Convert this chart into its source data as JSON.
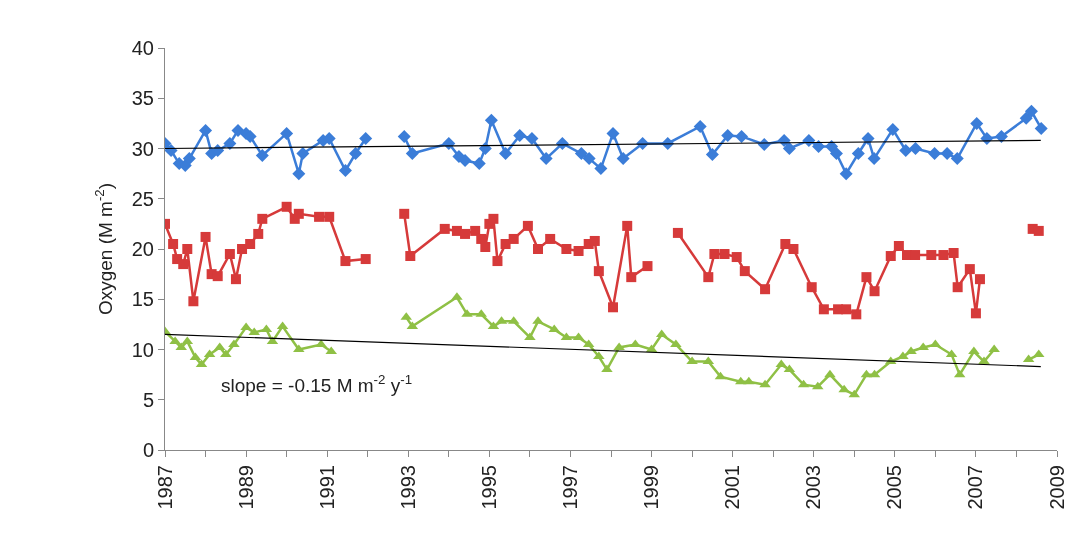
{
  "chart_data": {
    "type": "line",
    "ylabel": "Oxygen (M m$^{-2}$)",
    "xlim": [
      1987,
      2009
    ],
    "xticks": [
      1987,
      {
        "value": 1988,
        "label": null
      },
      1989,
      {
        "value": 1990,
        "label": null
      },
      1991,
      {
        "value": 1992,
        "label": null
      },
      1993,
      {
        "value": 1994,
        "label": null
      },
      1995,
      {
        "value": 1996,
        "label": null
      },
      1997,
      {
        "value": 1998,
        "label": null
      },
      1999,
      {
        "value": 2000,
        "label": null
      },
      2001,
      {
        "value": 2002,
        "label": null
      },
      2003,
      {
        "value": 2004,
        "label": null
      },
      2005,
      {
        "value": 2006,
        "label": null
      },
      2007,
      {
        "value": 2008,
        "label": null
      },
      2009
    ],
    "ylim": [
      0,
      40
    ],
    "yticks": [
      0,
      5,
      10,
      15,
      20,
      25,
      30,
      35,
      40
    ],
    "annotations": [
      "slope = -0.15 M m$^{-2}$ y$^{-1}$"
    ],
    "series": [
      {
        "color": "#3b7dd8",
        "marker": "diamond",
        "x": [
          1987.0,
          1987.15,
          1987.35,
          1987.5,
          1987.6,
          1988.0,
          1988.15,
          1988.3,
          1988.6,
          1988.8,
          1989.0,
          1989.1,
          1989.4,
          1990.0,
          1990.3,
          1990.4,
          1990.9,
          1991.05,
          1991.45,
          1991.7,
          1991.95,
          1992.4,
          1992.9,
          1993.1,
          1994.0,
          1994.25,
          1994.4,
          1994.75,
          1994.9,
          1995.05,
          1995.4,
          1995.75,
          1996.05,
          1996.4,
          1996.8,
          1997.27,
          1997.46,
          1997.75,
          1998.05,
          1998.3,
          1998.78,
          1999.4,
          2000.2,
          2000.5,
          2000.88,
          2001.22,
          2001.78,
          2002.27,
          2002.4,
          2002.88,
          2003.12,
          2003.44,
          2003.56,
          2003.8,
          2004.1,
          2004.34,
          2004.49,
          2004.95,
          2005.27,
          2005.51,
          2005.98,
          2006.29,
          2006.54,
          2007.02,
          2007.27,
          2007.63,
          2008.24,
          2008.37,
          2008.61
        ],
        "values": [
          30.5,
          29.8,
          28.5,
          28.3,
          29,
          31.8,
          29.5,
          29.8,
          30.5,
          31.8,
          31.5,
          31.2,
          29.3,
          31.5,
          27.5,
          29.5,
          30.8,
          31,
          27.8,
          29.5,
          31.0,
          null,
          31.2,
          29.5,
          30.5,
          29.2,
          28.8,
          28.5,
          30,
          32.8,
          29.5,
          31.3,
          31.0,
          29,
          30.5,
          29.5,
          29,
          28,
          31.5,
          29,
          30.5,
          30.5,
          32.2,
          29.4,
          31.3,
          31.2,
          30.4,
          30.8,
          30,
          30.8,
          30.2,
          30.2,
          29.5,
          27.5,
          29.5,
          31,
          29,
          31.9,
          29.8,
          30,
          29.5,
          29.5,
          29,
          32.5,
          31,
          31.2,
          33,
          33.7,
          32
        ]
      },
      {
        "color": "#d63a3a",
        "marker": "square",
        "x": [
          1987.0,
          1987.2,
          1987.3,
          1987.45,
          1987.55,
          1987.7,
          1988.0,
          1988.15,
          1988.3,
          1988.6,
          1988.75,
          1988.9,
          1989.1,
          1989.3,
          1989.4,
          1990.0,
          1990.2,
          1990.3,
          1990.8,
          1991.05,
          1991.45,
          1991.95,
          1992.4,
          1992.9,
          1993.05,
          1993.9,
          1994.2,
          1994.4,
          1994.65,
          1994.8,
          1994.9,
          1995.0,
          1995.1,
          1995.2,
          1995.4,
          1995.6,
          1995.95,
          1996.2,
          1996.5,
          1996.9,
          1997.2,
          1997.45,
          1997.6,
          1997.7,
          1998.05,
          1998.4,
          1998.5,
          1998.9,
          1999.3,
          1999.65,
          2000.4,
          2000.55,
          2000.8,
          2001.1,
          2001.3,
          2001.8,
          2002.3,
          2002.5,
          2002.95,
          2003.25,
          2003.6,
          2003.8,
          2004.05,
          2004.3,
          2004.5,
          2004.9,
          2005.1,
          2005.3,
          2005.5,
          2005.9,
          2006.2,
          2006.45,
          2006.55,
          2006.85,
          2007.0,
          2007.1,
          2007.8,
          2008.4,
          2008.55
        ],
        "values": [
          22.5,
          20.5,
          19,
          18.5,
          20,
          14.8,
          21.2,
          17.5,
          17.3,
          19.5,
          17,
          20,
          20.5,
          21.5,
          23,
          24.2,
          23,
          23.5,
          23.2,
          23.2,
          18.8,
          19,
          null,
          23.5,
          19.3,
          22,
          21.8,
          21.5,
          21.8,
          21,
          20.2,
          22.5,
          23,
          18.8,
          20.5,
          21,
          22.3,
          20,
          21,
          20,
          19.8,
          20.5,
          20.8,
          17.8,
          14.2,
          22.3,
          17.2,
          18.3,
          null,
          21.6,
          17.2,
          19.5,
          19.5,
          19.2,
          17.8,
          16,
          20.5,
          20,
          16.2,
          14,
          14,
          14,
          13.5,
          17.2,
          15.8,
          19.3,
          20.3,
          19.4,
          19.4,
          19.4,
          19.4,
          19.6,
          16.2,
          18,
          13.6,
          17,
          null,
          22,
          21.8
        ]
      },
      {
        "color": "#8fc045",
        "marker": "triangle",
        "x": [
          1987.0,
          1987.25,
          1987.4,
          1987.55,
          1987.75,
          1987.9,
          1988.1,
          1988.35,
          1988.5,
          1988.7,
          1989.0,
          1989.2,
          1989.5,
          1989.65,
          1989.9,
          1990.3,
          1990.85,
          1991.1,
          1992.0,
          1992.95,
          1993.1,
          1994.2,
          1994.45,
          1994.8,
          1995.1,
          1995.3,
          1995.6,
          1996.0,
          1996.2,
          1996.6,
          1996.9,
          1997.2,
          1997.45,
          1997.7,
          1997.9,
          1998.2,
          1998.6,
          1999.0,
          1999.25,
          1999.6,
          2000.0,
          2000.4,
          2000.7,
          2001.2,
          2001.4,
          2001.8,
          2002.2,
          2002.4,
          2002.75,
          2003.1,
          2003.4,
          2003.75,
          2004.0,
          2004.3,
          2004.5,
          2004.9,
          2005.2,
          2005.4,
          2005.7,
          2006.0,
          2006.4,
          2006.6,
          2006.95,
          2007.2,
          2007.45,
          2007.9,
          2008.3,
          2008.55
        ],
        "values": [
          11.8,
          10.8,
          10.2,
          10.8,
          9.2,
          8.5,
          9.5,
          10.2,
          9.5,
          10.5,
          12.2,
          11.7,
          12.0,
          10.8,
          12.3,
          10,
          10.5,
          9.8,
          null,
          13.2,
          12.3,
          15.2,
          13.5,
          13.5,
          12.3,
          12.8,
          12.8,
          11.2,
          12.8,
          12,
          11.2,
          11.2,
          10.5,
          9.3,
          8,
          10.2,
          10.5,
          10.0,
          11.5,
          10.5,
          8.8,
          8.8,
          7.3,
          6.8,
          6.8,
          6.5,
          8.5,
          8,
          6.5,
          6.3,
          7.5,
          6.0,
          5.5,
          7.5,
          7.5,
          8.8,
          9.3,
          9.8,
          10.2,
          10.5,
          9.5,
          7.5,
          9.8,
          8.8,
          10,
          null,
          9,
          9.5
        ]
      },
      {
        "type": "line",
        "color": "#000000",
        "marker": "none",
        "x": [
          1987.0,
          2008.6
        ],
        "values": [
          30.0,
          30.8
        ]
      },
      {
        "type": "line",
        "color": "#000000",
        "marker": "none",
        "x": [
          1987.0,
          2008.6
        ],
        "values": [
          11.5,
          8.3
        ]
      }
    ]
  }
}
